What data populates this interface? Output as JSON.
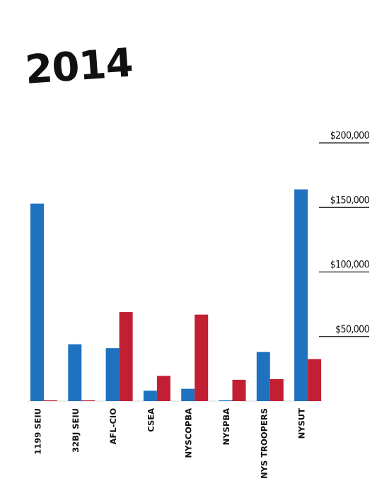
{
  "chart_data": {
    "type": "bar",
    "title": "2014",
    "categories": [
      "1199 SEIU",
      "32BJ SEIU",
      "AFL-CIO",
      "CSEA",
      "NYSCOPBA",
      "NYSPBA",
      "NYS TROOPERS",
      "NYSUT"
    ],
    "series": [
      {
        "color": "#1f72bf",
        "values": [
          153000,
          44000,
          41000,
          8000,
          9500,
          500,
          38000,
          164000
        ]
      },
      {
        "color": "#c21f32",
        "values": [
          500,
          500,
          69000,
          19500,
          67000,
          16500,
          17000,
          32500
        ]
      }
    ],
    "y_ticks": [
      {
        "value": 50000,
        "label": "$50,000"
      },
      {
        "value": 100000,
        "label": "$100,000"
      },
      {
        "value": 150000,
        "label": "$150,000"
      },
      {
        "value": 200000,
        "label": "$200,000"
      }
    ],
    "ylim": [
      0,
      200000
    ],
    "grid": false,
    "legend": "none"
  }
}
